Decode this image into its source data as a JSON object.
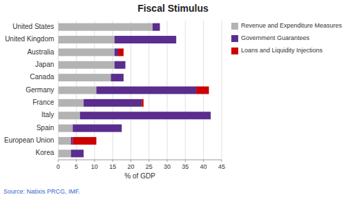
{
  "chart_data": {
    "type": "bar",
    "orientation": "horizontal",
    "stacked": true,
    "title": "Fiscal Stimulus",
    "xlabel": "% of GDP",
    "annotations": [
      "Source: Natixis PRCG, IMF."
    ],
    "categories": [
      "Korea",
      "European Union",
      "Spain",
      "Italy",
      "France",
      "Germany",
      "Canada",
      "Japan",
      "Australia",
      "United Kingdom",
      "United States"
    ],
    "series": [
      {
        "name": "Revenue and Expenditure Measures",
        "color": "#b3b3b3",
        "values": [
          3.5,
          3.5,
          4.0,
          6.0,
          7.0,
          10.5,
          14.5,
          15.5,
          15.5,
          15.5,
          26.0
        ]
      },
      {
        "name": "Government Guarantees",
        "color": "#5b2d8e",
        "values": [
          3.5,
          0.5,
          13.5,
          36.0,
          16.0,
          27.5,
          3.5,
          3.0,
          1.0,
          17.0,
          2.0
        ]
      },
      {
        "name": "Loans and Liquidity Injections",
        "color": "#cc0000",
        "values": [
          0.0,
          6.5,
          0.0,
          0.0,
          0.5,
          3.5,
          0.0,
          0.0,
          1.5,
          0.0,
          0.0
        ]
      }
    ],
    "xlim": [
      0,
      45
    ],
    "xticks": [
      0,
      5,
      10,
      15,
      20,
      25,
      30,
      35,
      40,
      45
    ],
    "grid": true,
    "legend": "right"
  }
}
